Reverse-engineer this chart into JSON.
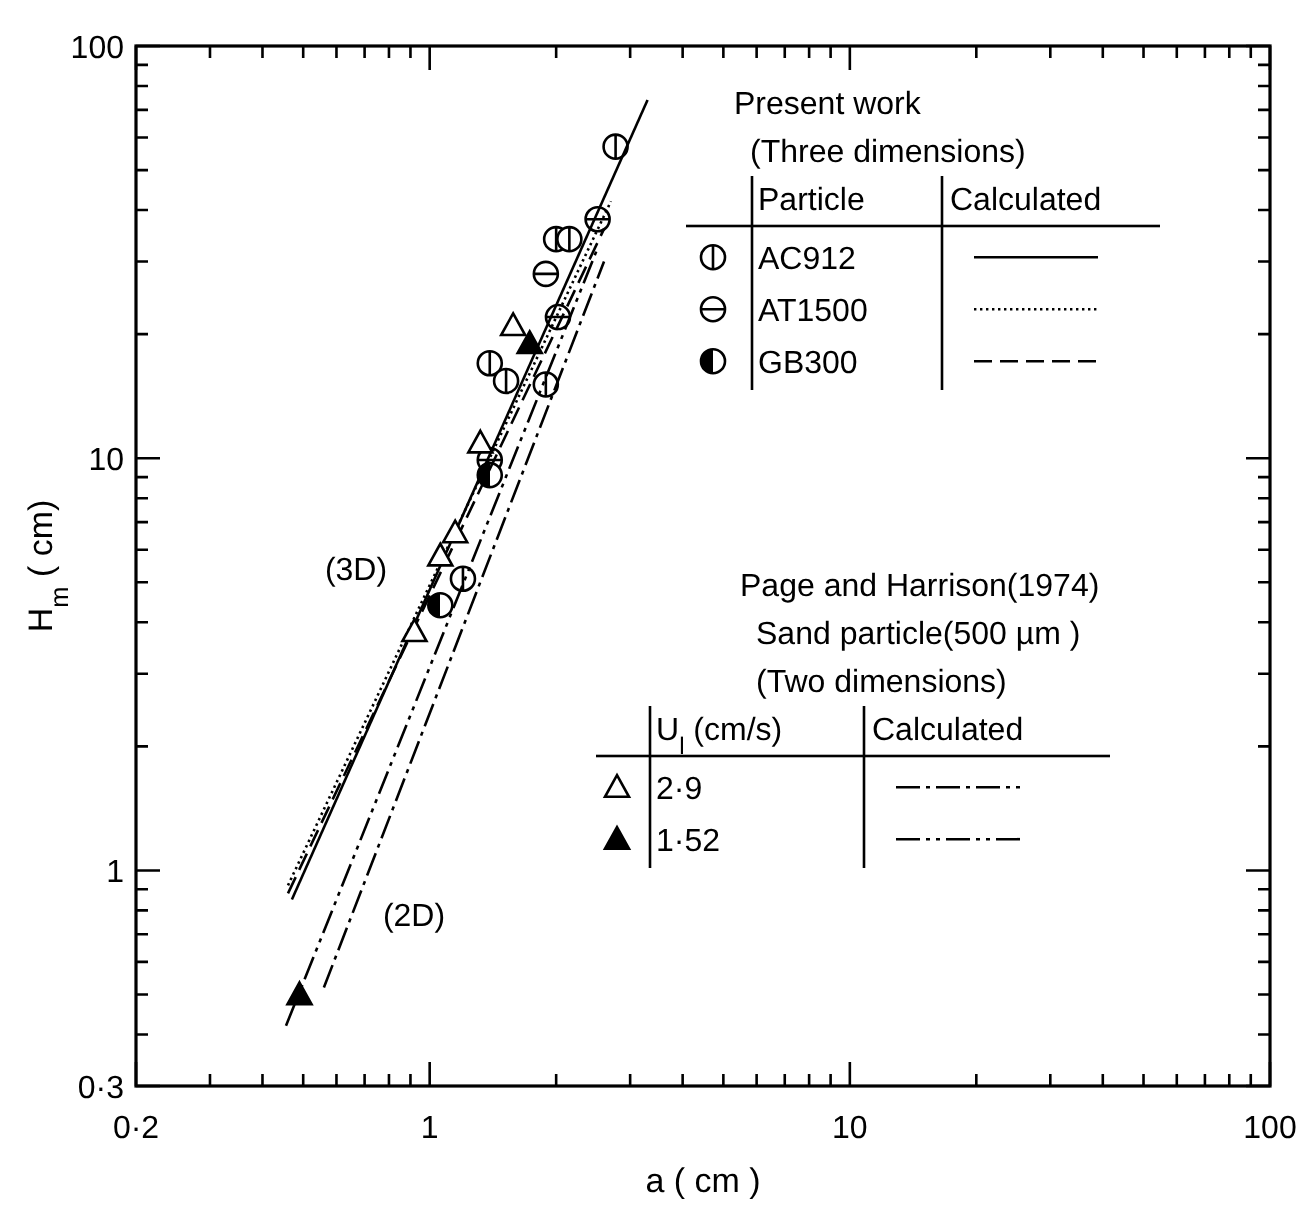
{
  "chart_data": {
    "type": "scatter",
    "xlabel": "a   ( cm )",
    "ylabel": "H$_{m}$   ( cm)",
    "log": "xy",
    "legend": "right",
    "xlim": [
      0.2,
      100
    ],
    "ylim": [
      0.3,
      100
    ],
    "xticks": [
      {
        "value": 0.2,
        "label": "0·2"
      },
      {
        "value": 0.3,
        "label": null
      },
      {
        "value": 0.4,
        "label": null
      },
      {
        "value": 0.5,
        "label": null
      },
      {
        "value": 0.6,
        "label": null
      },
      {
        "value": 0.7,
        "label": null
      },
      {
        "value": 0.8,
        "label": null
      },
      {
        "value": 0.9,
        "label": null
      },
      1,
      {
        "value": 2,
        "label": null
      },
      {
        "value": 3,
        "label": null
      },
      {
        "value": 4,
        "label": null
      },
      {
        "value": 5,
        "label": null
      },
      {
        "value": 6,
        "label": null
      },
      {
        "value": 7,
        "label": null
      },
      {
        "value": 8,
        "label": null
      },
      {
        "value": 9,
        "label": null
      },
      10,
      {
        "value": 20,
        "label": null
      },
      {
        "value": 30,
        "label": null
      },
      {
        "value": 40,
        "label": null
      },
      {
        "value": 50,
        "label": null
      },
      {
        "value": 60,
        "label": null
      },
      {
        "value": 70,
        "label": null
      },
      {
        "value": 80,
        "label": null
      },
      {
        "value": 90,
        "label": null
      },
      100
    ],
    "yticks": [
      {
        "value": 0.3,
        "label": "0·3"
      },
      {
        "value": 0.4,
        "label": null
      },
      {
        "value": 0.5,
        "label": null
      },
      {
        "value": 0.6,
        "label": null
      },
      {
        "value": 0.7,
        "label": null
      },
      {
        "value": 0.8,
        "label": null
      },
      {
        "value": 0.9,
        "label": null
      },
      1,
      {
        "value": 2,
        "label": null
      },
      {
        "value": 3,
        "label": null
      },
      {
        "value": 4,
        "label": null
      },
      {
        "value": 5,
        "label": null
      },
      {
        "value": 6,
        "label": null
      },
      {
        "value": 7,
        "label": null
      },
      {
        "value": 8,
        "label": null
      },
      {
        "value": 9,
        "label": null
      },
      10,
      {
        "value": 20,
        "label": null
      },
      {
        "value": 30,
        "label": null
      },
      {
        "value": 40,
        "label": null
      },
      {
        "value": 50,
        "label": null
      },
      {
        "value": 60,
        "label": null
      },
      {
        "value": 70,
        "label": null
      },
      {
        "value": 80,
        "label": null
      },
      {
        "value": 90,
        "label": null
      },
      100
    ],
    "legend_title": [
      [
        "Present work",
        "(Three dimensions)",
        "Particle",
        "Calculated"
      ],
      [
        "Page and Harrison(1974)",
        "Sand particle(500 µm )",
        "(Two dimensions)",
        "U$_{l}$ (cm/s)",
        "Calculated"
      ]
    ],
    "annotations": [
      "(3D)",
      "(2D)"
    ],
    "series": [
      {
        "name": "AC912",
        "marker": "cross-vertical",
        "color": "#000000",
        "x": [
          2.77,
          2.0,
          2.15,
          1.39,
          1.52,
          1.89,
          1.2
        ],
        "values": [
          57,
          34,
          34,
          17,
          15.4,
          15.1,
          5.1
        ]
      },
      {
        "name": "AT1500",
        "marker": "cross-horizontal",
        "color": "#000000",
        "x": [
          2.51,
          1.89,
          2.02,
          1.39
        ],
        "values": [
          38,
          28,
          22,
          9.9
        ]
      },
      {
        "name": "GB300",
        "marker": "circle-half",
        "color": "#000000",
        "x": [
          1.06,
          1.39
        ],
        "values": [
          4.4,
          9.1
        ]
      },
      {
        "type": "line",
        "line_style": "solid",
        "color": "#000000",
        "x": [
          0.47,
          3.3
        ],
        "values": [
          0.85,
          74
        ]
      },
      {
        "type": "line",
        "line_style": "dotted",
        "color": "#000000",
        "x": [
          0.46,
          2.7
        ],
        "values": [
          0.92,
          42
        ]
      },
      {
        "type": "line",
        "line_style": "dashed",
        "color": "#000000",
        "x": [
          0.46,
          2.6
        ],
        "values": [
          0.88,
          36
        ]
      },
      {
        "name": "2·9",
        "marker": "triangle",
        "color": "#000000",
        "x": [
          1.58,
          1.32,
          1.15,
          1.06,
          0.92
        ],
        "values": [
          21,
          10.9,
          6.6,
          5.8,
          3.8
        ]
      },
      {
        "name": "1·52",
        "marker": "triangle-filled",
        "color": "#000000",
        "x": [
          1.73,
          0.49
        ],
        "values": [
          19,
          0.5
        ]
      },
      {
        "type": "line",
        "line_style": "dashdot",
        "color": "#000000",
        "x": [
          0.56,
          2.6
        ],
        "values": [
          0.52,
          30
        ]
      },
      {
        "type": "line",
        "line_style": "dashdotdot",
        "color": "#000000",
        "x": [
          0.455,
          2.5
        ],
        "values": [
          0.42,
          32
        ]
      }
    ]
  }
}
